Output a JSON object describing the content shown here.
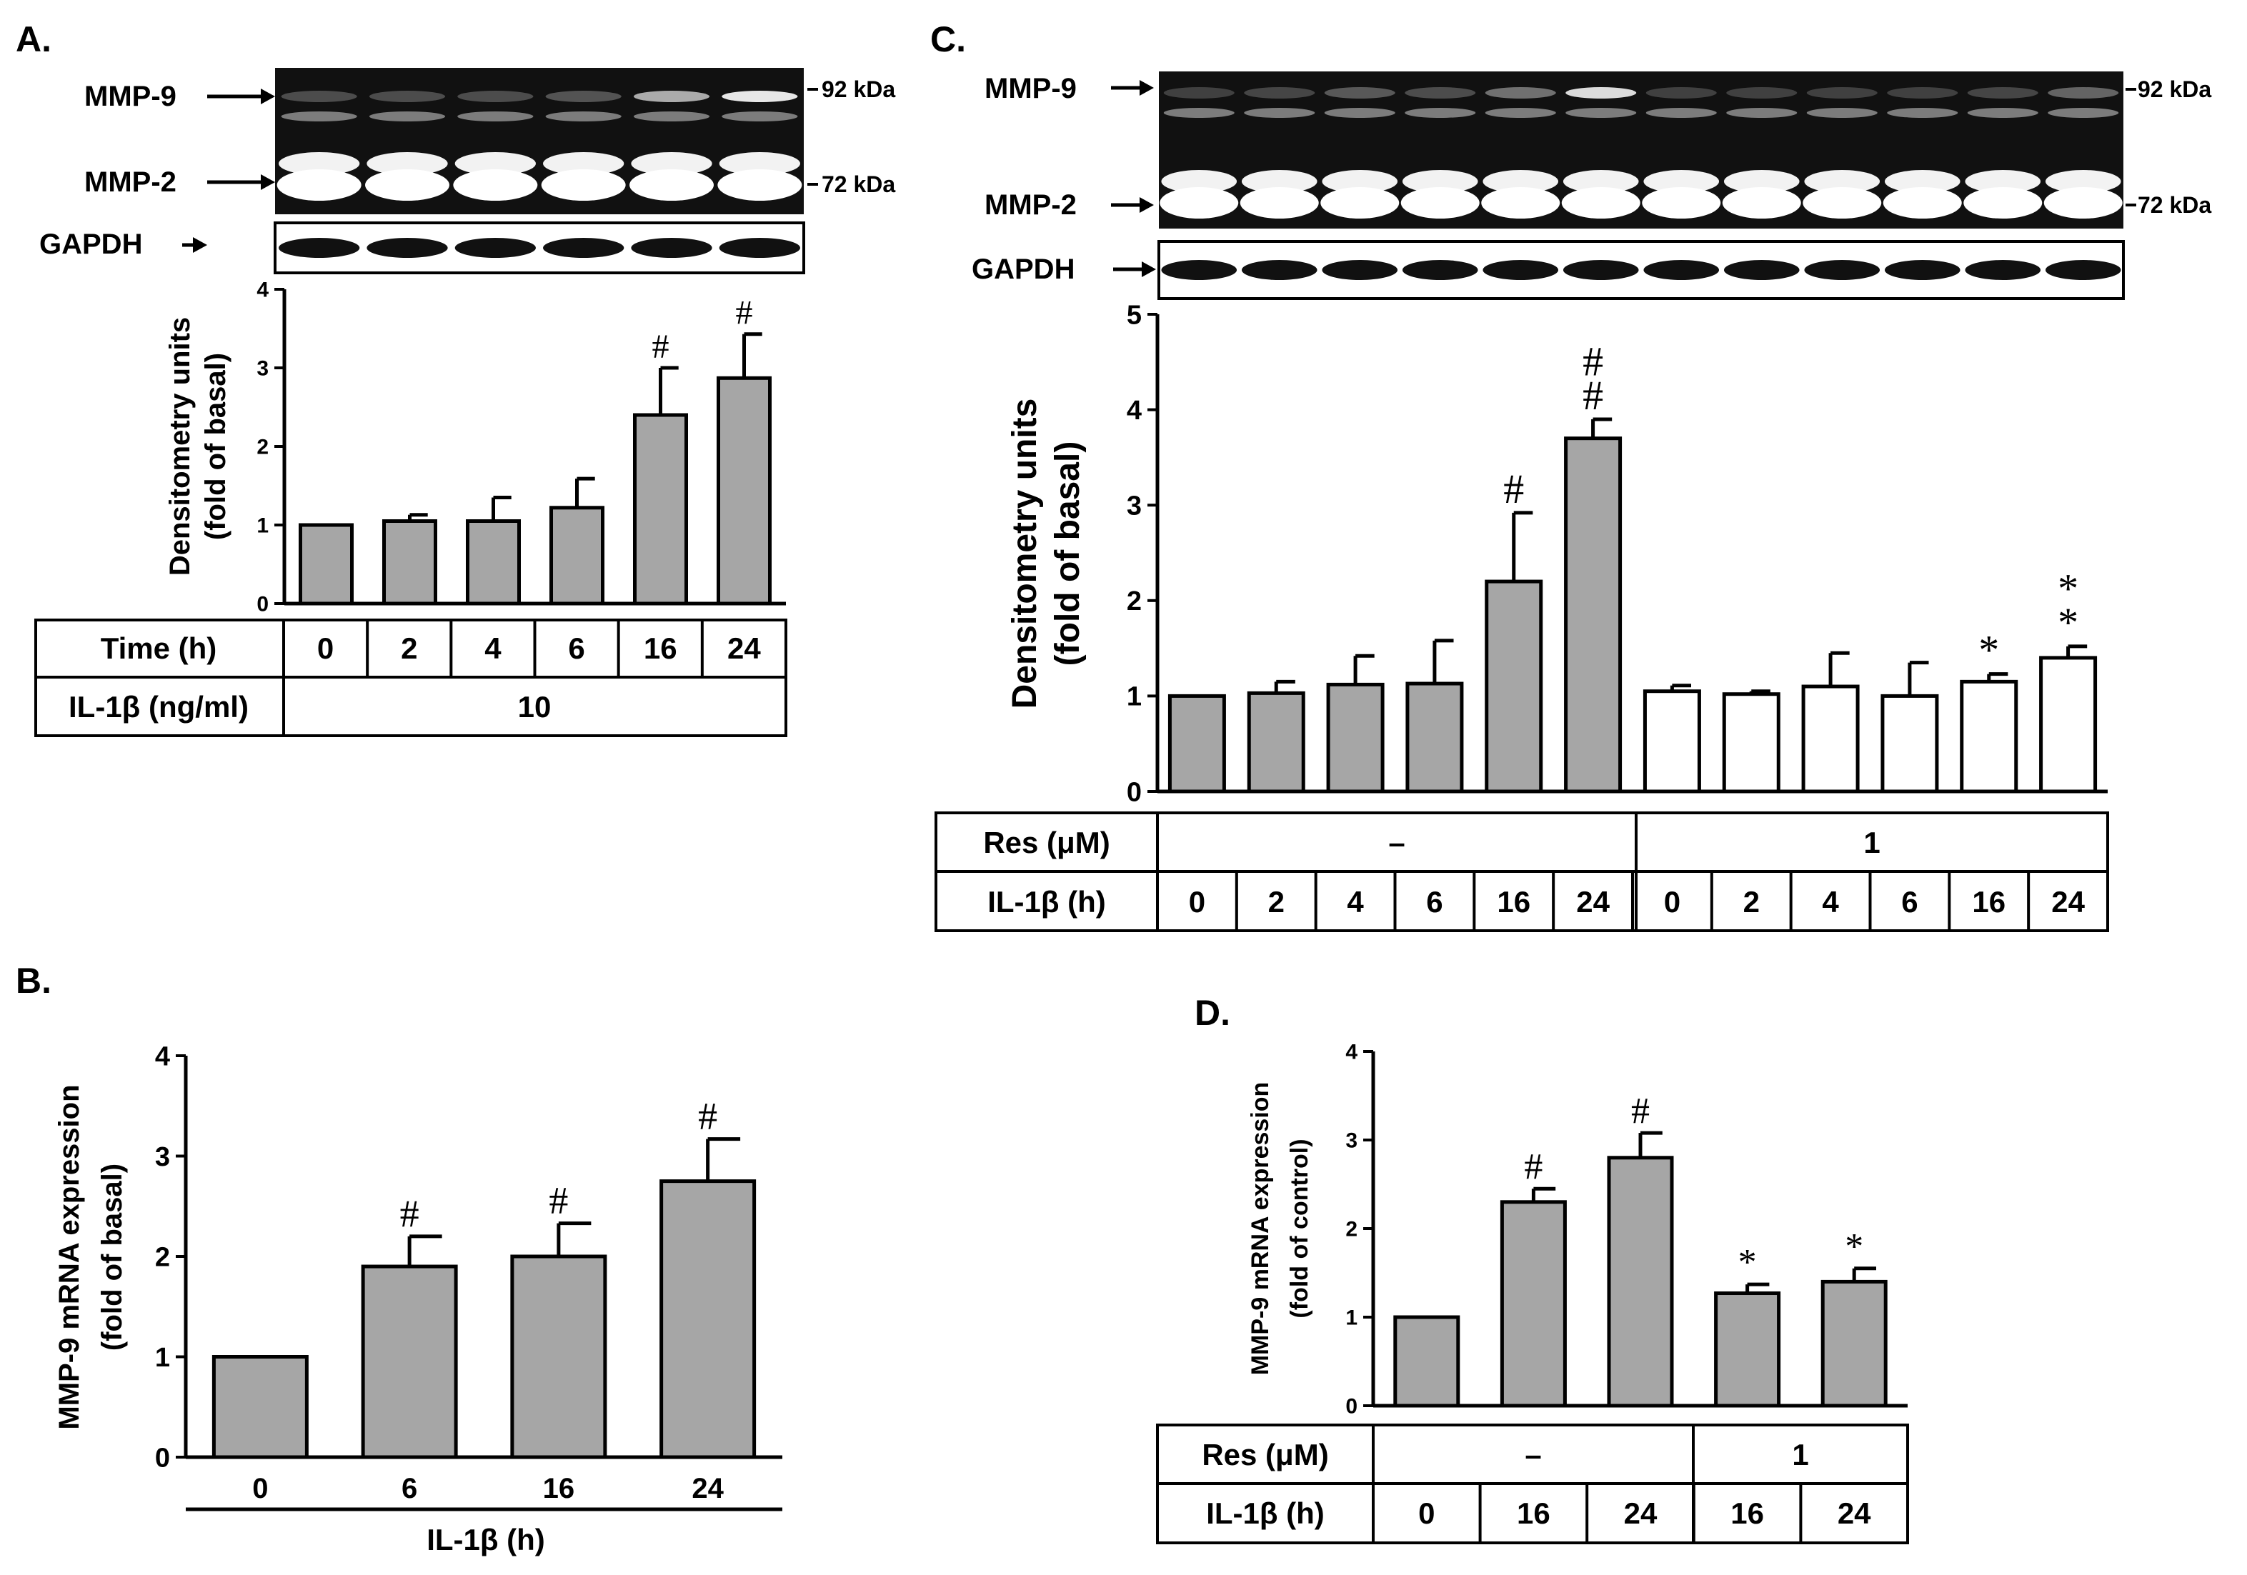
{
  "colors": {
    "bar_fill": "#a6a6a6",
    "bar_open": "#ffffff",
    "ink": "#000000",
    "blot_bg": "#111111",
    "band": "#ffffff"
  },
  "panel_a": {
    "label": "A.",
    "blot": {
      "mmp9": "MMP-9",
      "mmp2": "MMP-2",
      "gapdh": "GAPDH",
      "kda92": "92 kDa",
      "kda72": "72 kDa",
      "lanes": 6,
      "mmp9_intensity": [
        0.25,
        0.25,
        0.25,
        0.28,
        0.65,
        0.9
      ]
    },
    "table": {
      "row1_label": "Time (h)",
      "row1_values": [
        "0",
        "2",
        "4",
        "6",
        "16",
        "24"
      ],
      "row2_label": "IL-1β (ng/ml)",
      "row2_value": "10"
    }
  },
  "panel_b": {
    "label": "B.",
    "xlabel": "IL-1β (h)"
  },
  "panel_c": {
    "label": "C.",
    "blot": {
      "mmp9": "MMP-9",
      "mmp2": "MMP-2",
      "gapdh": "GAPDH",
      "kda92": "92 kDa",
      "kda72": "72 kDa",
      "lanes": 12,
      "mmp9_intensity": [
        0.2,
        0.22,
        0.3,
        0.25,
        0.4,
        0.85,
        0.2,
        0.2,
        0.2,
        0.2,
        0.22,
        0.35
      ]
    },
    "table": {
      "row1_label": "Res (μM)",
      "row1_groups": [
        "–",
        "1"
      ],
      "row2_label": "IL-1β (h)",
      "row2_values": [
        "0",
        "2",
        "4",
        "6",
        "16",
        "24",
        "0",
        "2",
        "4",
        "6",
        "16",
        "24"
      ]
    }
  },
  "panel_d": {
    "label": "D.",
    "table": {
      "row1_label": "Res (μM)",
      "row1_groups": [
        "–",
        "1"
      ],
      "row2_label": "IL-1β (h)",
      "row2_values": [
        "0",
        "16",
        "24",
        "16",
        "24"
      ]
    }
  },
  "chart_data": [
    {
      "panel": "A",
      "type": "bar",
      "categories": [
        "0",
        "2",
        "4",
        "6",
        "16",
        "24"
      ],
      "values": [
        1.0,
        1.05,
        1.05,
        1.22,
        2.4,
        2.87
      ],
      "errors": [
        0,
        0.08,
        0.3,
        0.37,
        0.6,
        0.56
      ],
      "annotations": [
        "",
        "",
        "",
        "",
        "#",
        "#"
      ],
      "ylabel_line1": "Densitometry units",
      "ylabel_line2": "(fold of basal)",
      "ylim": [
        0,
        4
      ],
      "yticks": [
        "0",
        "1",
        "2",
        "3",
        "4"
      ],
      "fills": [
        "gray",
        "gray",
        "gray",
        "gray",
        "gray",
        "gray"
      ]
    },
    {
      "panel": "B",
      "type": "bar",
      "categories": [
        "0",
        "6",
        "16",
        "24"
      ],
      "values": [
        1.0,
        1.9,
        2.0,
        2.75
      ],
      "errors": [
        0,
        0.3,
        0.33,
        0.42
      ],
      "annotations": [
        "",
        "#",
        "#",
        "#"
      ],
      "ylabel_line1": "MMP-9 mRNA expression",
      "ylabel_line2": "(fold of basal)",
      "ylim": [
        0,
        4
      ],
      "yticks": [
        "0",
        "1",
        "2",
        "3",
        "4"
      ],
      "fills": [
        "gray",
        "gray",
        "gray",
        "gray"
      ]
    },
    {
      "panel": "C",
      "type": "bar",
      "categories": [
        "0",
        "2",
        "4",
        "6",
        "16",
        "24",
        "0",
        "2",
        "4",
        "6",
        "16",
        "24"
      ],
      "values": [
        1.0,
        1.03,
        1.12,
        1.13,
        2.2,
        3.7,
        1.05,
        1.02,
        1.1,
        1.0,
        1.15,
        1.4
      ],
      "errors": [
        0,
        0.12,
        0.3,
        0.45,
        0.72,
        0.2,
        0.06,
        0.03,
        0.35,
        0.35,
        0.08,
        0.12
      ],
      "annotations": [
        "",
        "",
        "",
        "",
        "#",
        "#\n#",
        "",
        "",
        "",
        "",
        "*",
        "*\n*"
      ],
      "ylabel_line1": "Densitometry units",
      "ylabel_line2": "(fold of basal)",
      "ylim": [
        0,
        5
      ],
      "yticks": [
        "0",
        "1",
        "2",
        "3",
        "4",
        "5"
      ],
      "fills": [
        "gray",
        "gray",
        "gray",
        "gray",
        "gray",
        "gray",
        "white",
        "white",
        "white",
        "white",
        "white",
        "white"
      ]
    },
    {
      "panel": "D",
      "type": "bar",
      "categories": [
        "0",
        "16",
        "24",
        "16",
        "24"
      ],
      "values": [
        1.0,
        2.3,
        2.8,
        1.27,
        1.4
      ],
      "errors": [
        0,
        0.15,
        0.28,
        0.1,
        0.15
      ],
      "annotations": [
        "",
        "#",
        "#",
        "*",
        "*"
      ],
      "ylabel_line1": "MMP-9 mRNA expression",
      "ylabel_line2": "(fold of control)",
      "ylim": [
        0,
        4
      ],
      "yticks": [
        "0",
        "1",
        "2",
        "3",
        "4"
      ],
      "fills": [
        "gray",
        "gray",
        "gray",
        "gray",
        "gray"
      ]
    }
  ]
}
